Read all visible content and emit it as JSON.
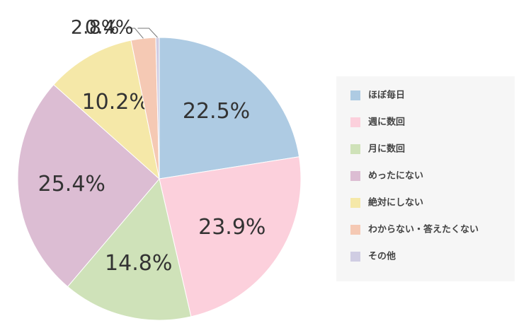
{
  "chart_data": {
    "type": "pie",
    "categories": [
      "ほぼ毎日",
      "週に数回",
      "月に数回",
      "めったにない",
      "絶対にしない",
      "わからない・答えたくない",
      "その他"
    ],
    "values": [
      22.5,
      23.9,
      14.8,
      25.4,
      10.2,
      2.8,
      0.4
    ],
    "value_labels": [
      "22.5%",
      "23.9%",
      "14.8%",
      "25.4%",
      "10.2%",
      "2.8%",
      "0.4%"
    ],
    "colors": [
      "#aecbe3",
      "#fcd0dc",
      "#cfe2b9",
      "#dcbdd3",
      "#f5e8a8",
      "#f5c9b4",
      "#d0cde3"
    ],
    "legend": "right"
  }
}
